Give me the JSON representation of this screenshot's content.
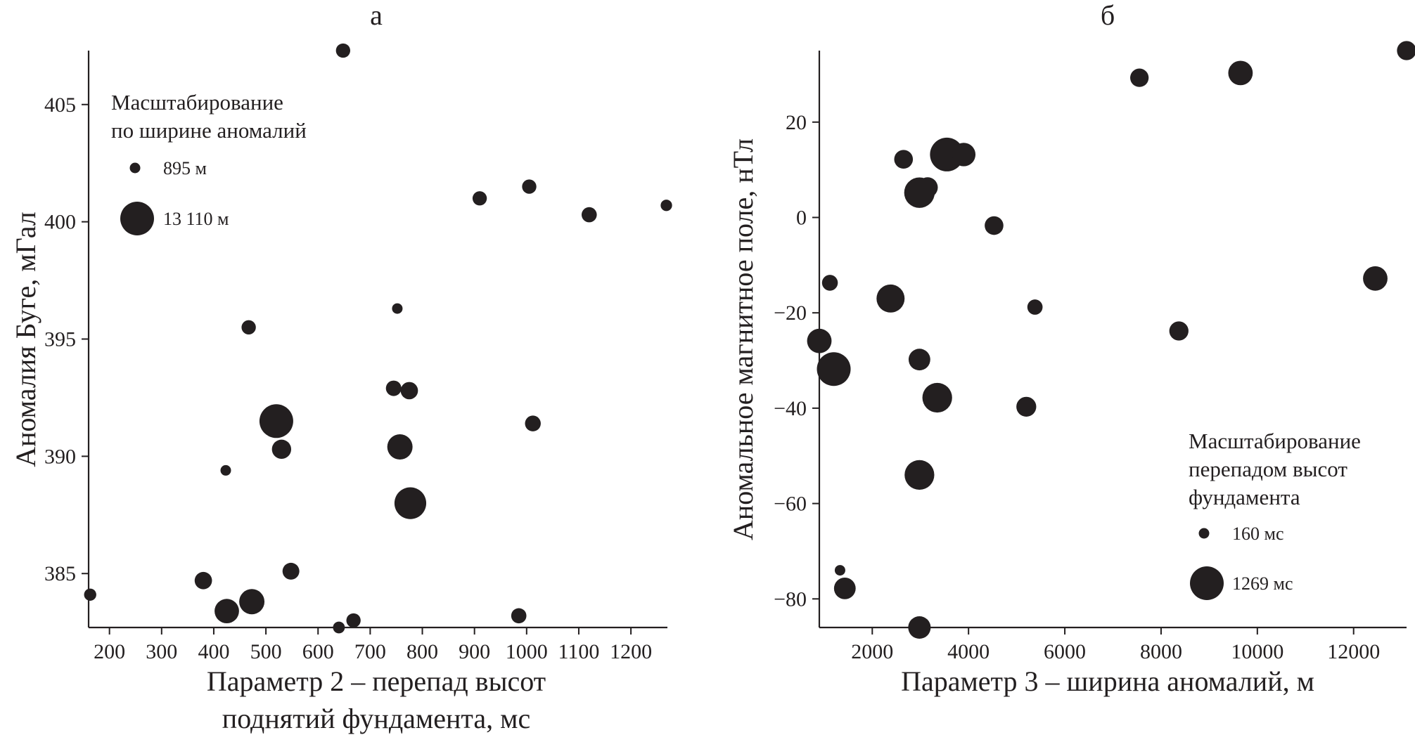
{
  "colors": {
    "marker": "#231f20",
    "axis": "#231f20",
    "background": "#ffffff"
  },
  "chart_data": [
    {
      "type": "scatter",
      "panel_label": "а",
      "title": "",
      "xlabel": [
        "Параметр 2 – перепад высот",
        "поднятий фундамента, мс"
      ],
      "ylabel": "Аномалия Буге, мГал",
      "xlim": [
        160,
        1270
      ],
      "ylim": [
        382.7,
        407.3
      ],
      "xticks": [
        200,
        300,
        400,
        500,
        600,
        700,
        800,
        900,
        1000,
        1100,
        1200
      ],
      "xtick_labels": [
        "200",
        "300",
        "400",
        "500",
        "600",
        "700",
        "800",
        "900",
        "1000",
        "1100",
        "1200"
      ],
      "yticks": [
        385,
        390,
        395,
        400,
        405
      ],
      "ytick_labels": [
        "385",
        "390",
        "395",
        "400",
        "405"
      ],
      "grid": false,
      "size_encoding": "ширина аномалий, м",
      "legend": {
        "placement": "top-left",
        "title": [
          "Масштабирование",
          "по ширине аномалий"
        ],
        "entries": [
          {
            "label": "895 м",
            "size": 895
          },
          {
            "label": "13 110 м",
            "size": 13110
          }
        ]
      },
      "points": [
        {
          "x": 648,
          "y": 407.3,
          "size": 1900
        },
        {
          "x": 910,
          "y": 401.0,
          "size": 1900
        },
        {
          "x": 1005,
          "y": 401.5,
          "size": 1900
        },
        {
          "x": 1120,
          "y": 400.3,
          "size": 2200
        },
        {
          "x": 1268,
          "y": 400.7,
          "size": 1100
        },
        {
          "x": 752,
          "y": 396.3,
          "size": 895
        },
        {
          "x": 467,
          "y": 395.5,
          "size": 1900
        },
        {
          "x": 745,
          "y": 392.9,
          "size": 2300
        },
        {
          "x": 775,
          "y": 392.8,
          "size": 3000
        },
        {
          "x": 1012,
          "y": 391.4,
          "size": 2400
        },
        {
          "x": 520,
          "y": 391.5,
          "size": 13110
        },
        {
          "x": 530,
          "y": 390.3,
          "size": 3800
        },
        {
          "x": 757,
          "y": 390.4,
          "size": 7000
        },
        {
          "x": 423,
          "y": 389.4,
          "size": 895
        },
        {
          "x": 777,
          "y": 388.0,
          "size": 11500
        },
        {
          "x": 163,
          "y": 384.1,
          "size": 1300
        },
        {
          "x": 380,
          "y": 384.7,
          "size": 3000
        },
        {
          "x": 548,
          "y": 385.1,
          "size": 2800
        },
        {
          "x": 425,
          "y": 383.4,
          "size": 6500
        },
        {
          "x": 473,
          "y": 383.8,
          "size": 7000
        },
        {
          "x": 640,
          "y": 382.7,
          "size": 1200
        },
        {
          "x": 668,
          "y": 383.0,
          "size": 1900
        },
        {
          "x": 985,
          "y": 383.2,
          "size": 2200
        }
      ]
    },
    {
      "type": "scatter",
      "panel_label": "б",
      "title": "",
      "xlabel": [
        "Параметр 3 – ширина аномалий, м"
      ],
      "ylabel": "Аномальное магнитное поле, нТл",
      "xlim": [
        900,
        13100
      ],
      "ylim": [
        -86,
        35
      ],
      "xticks": [
        2000,
        4000,
        6000,
        8000,
        10000,
        12000
      ],
      "xtick_labels": [
        "2000",
        "4000",
        "6000",
        "8000",
        "10000",
        "12000"
      ],
      "yticks": [
        -80,
        -60,
        -40,
        -20,
        0,
        20
      ],
      "ytick_labels": [
        "−80",
        "−60",
        "−40",
        "−20",
        "0",
        "20"
      ],
      "grid": false,
      "size_encoding": "перепад высот фундамента, мс",
      "legend": {
        "placement": "bottom-right",
        "title": [
          "Масштабирование",
          "перепадом высот",
          "фундамента"
        ],
        "entries": [
          {
            "label": "160 мс",
            "size": 160
          },
          {
            "label": "1269 мс",
            "size": 1269
          }
        ]
      },
      "points": [
        {
          "x": 13100,
          "y": 35,
          "size": 450
        },
        {
          "x": 7550,
          "y": 29.3,
          "size": 420
        },
        {
          "x": 9650,
          "y": 30.3,
          "size": 700
        },
        {
          "x": 2650,
          "y": 12.2,
          "size": 430
        },
        {
          "x": 3550,
          "y": 13.2,
          "size": 1269
        },
        {
          "x": 3900,
          "y": 13.2,
          "size": 650
        },
        {
          "x": 3150,
          "y": 6.3,
          "size": 500
        },
        {
          "x": 2980,
          "y": 5.2,
          "size": 1050
        },
        {
          "x": 4530,
          "y": -1.7,
          "size": 430
        },
        {
          "x": 12450,
          "y": -12.8,
          "size": 700
        },
        {
          "x": 1120,
          "y": -13.7,
          "size": 320
        },
        {
          "x": 2380,
          "y": -17.0,
          "size": 900
        },
        {
          "x": 5380,
          "y": -18.8,
          "size": 300
        },
        {
          "x": 8370,
          "y": -23.8,
          "size": 450
        },
        {
          "x": 900,
          "y": -25.9,
          "size": 700
        },
        {
          "x": 1200,
          "y": -31.8,
          "size": 1269
        },
        {
          "x": 2980,
          "y": -29.8,
          "size": 560
        },
        {
          "x": 3350,
          "y": -37.8,
          "size": 1000
        },
        {
          "x": 5200,
          "y": -39.7,
          "size": 480
        },
        {
          "x": 2980,
          "y": -54.0,
          "size": 1000
        },
        {
          "x": 1330,
          "y": -74.0,
          "size": 160
        },
        {
          "x": 1430,
          "y": -77.8,
          "size": 560
        },
        {
          "x": 2980,
          "y": -86.0,
          "size": 600
        }
      ]
    }
  ]
}
